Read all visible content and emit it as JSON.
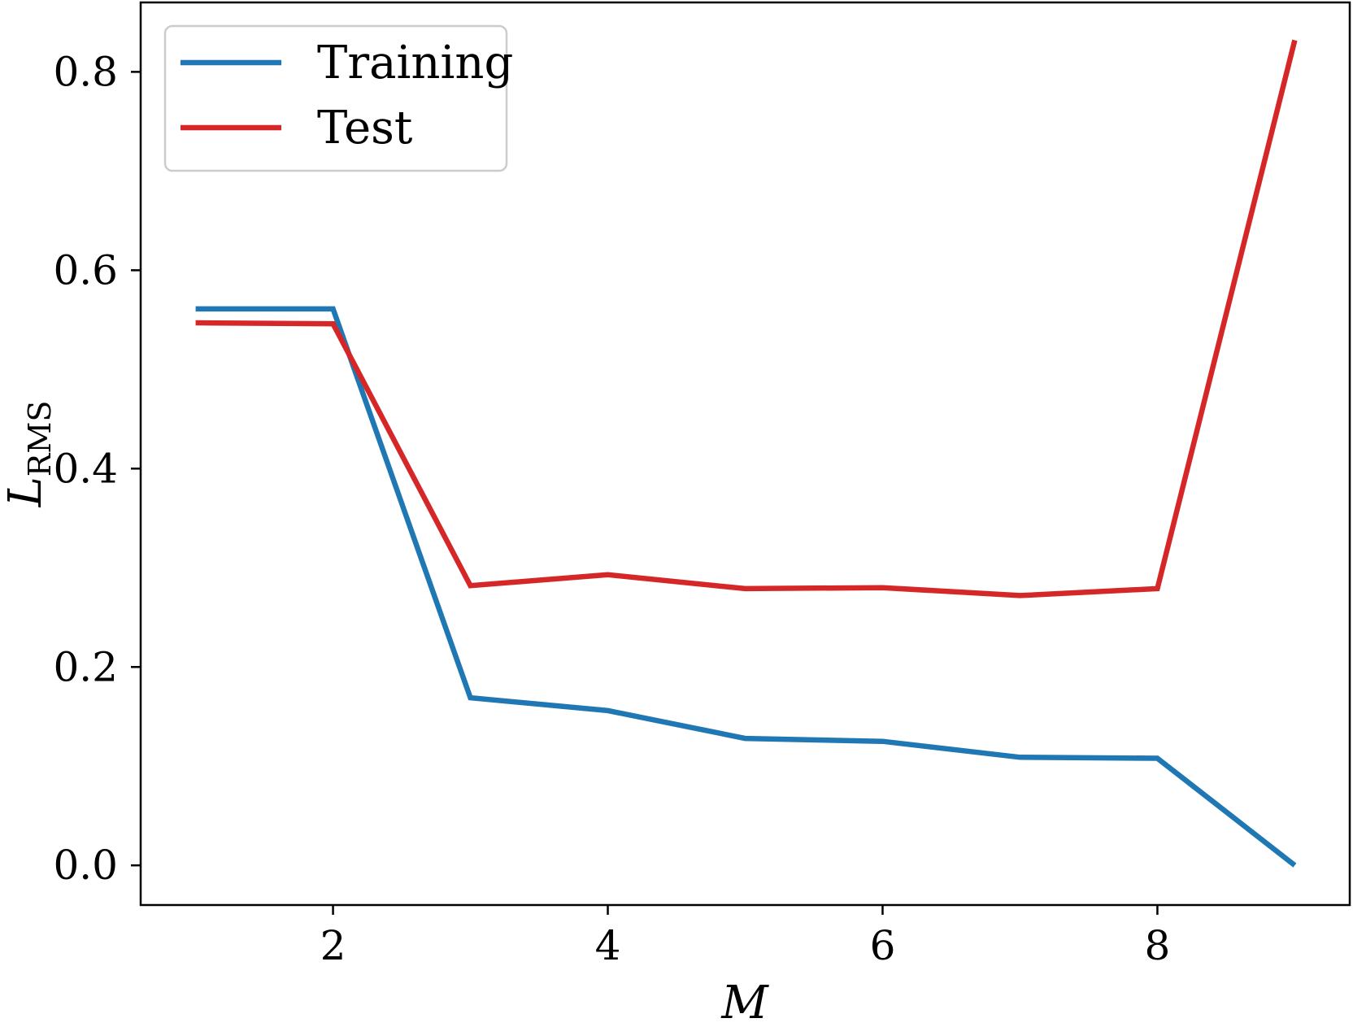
{
  "chart_data": {
    "type": "line",
    "xlabel": "M",
    "ylabel": {
      "base": "L",
      "subscript": "RMS"
    },
    "xlim": [
      0.6,
      9.4
    ],
    "ylim": [
      -0.04,
      0.87
    ],
    "x_ticks": [
      2,
      4,
      6,
      8
    ],
    "y_ticks": [
      0.0,
      0.2,
      0.4,
      0.6,
      0.8
    ],
    "x_tick_labels": [
      "2",
      "4",
      "6",
      "8"
    ],
    "y_tick_labels": [
      "0.0",
      "0.2",
      "0.4",
      "0.6",
      "0.8"
    ],
    "grid": false,
    "legend_position": "top-left",
    "series": [
      {
        "name": "Training",
        "color": "#1f77b4",
        "x": [
          1,
          2,
          3,
          4,
          5,
          6,
          7,
          8,
          9
        ],
        "y": [
          0.561,
          0.561,
          0.169,
          0.156,
          0.128,
          0.125,
          0.109,
          0.108,
          0.0
        ]
      },
      {
        "name": "Test",
        "color": "#d62728",
        "x": [
          1,
          2,
          3,
          4,
          5,
          6,
          7,
          8,
          9
        ],
        "y": [
          0.547,
          0.546,
          0.282,
          0.293,
          0.279,
          0.28,
          0.272,
          0.279,
          0.832
        ]
      }
    ]
  }
}
